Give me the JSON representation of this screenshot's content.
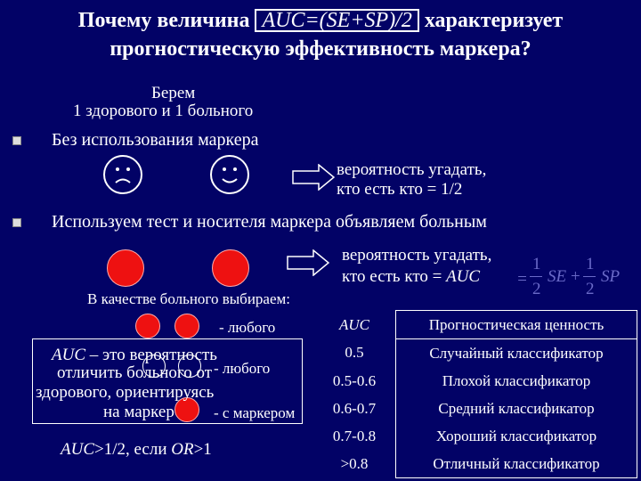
{
  "title": {
    "prefix": "Почему величина",
    "formula": "AUC=(SE+SP)/2",
    "suffix": "характеризует",
    "line2": "прогностическую эффективность маркера?"
  },
  "intro": {
    "line1": "Берем",
    "line2": "1 здорового и 1 больного"
  },
  "bullet1": "Без использования маркера",
  "prob1": {
    "line1": "вероятность угадать,",
    "line2": "кто есть кто = 1/2"
  },
  "bullet2": "Используем тест и носителя маркера объявляем больным",
  "prob2": {
    "line1": "вероятность угадать,",
    "line2_prefix": "кто есть кто = ",
    "line2_auc": "AUC",
    "formula": {
      "eq": "=",
      "one": "1",
      "two": "2",
      "se": "SE",
      "plus": "+",
      "sp": "SP"
    }
  },
  "choose": "В качестве больного выбираем:",
  "any": "- любого",
  "auc_explain": {
    "auc": "AUC",
    "line1_rest": " – это вероятность",
    "line2": "отличить больного от",
    "line3": "здорового, ориентируясь",
    "line4": "на маркер"
  },
  "any_overlay": "- любого",
  "with_marker": "- с маркером",
  "condition": {
    "auc": "AUC",
    "mid": ">1/2, если ",
    "or": "OR",
    "tail": ">1"
  },
  "table": {
    "headers": [
      "AUC",
      "Прогностическая ценность"
    ],
    "rows": [
      [
        "0.5",
        "Случайный классификатор"
      ],
      [
        "0.5-0.6",
        "Плохой классификатор"
      ],
      [
        "0.6-0.7",
        "Средний классификатор"
      ],
      [
        "0.7-0.8",
        "Хороший классификатор"
      ],
      [
        ">0.8",
        "Отличный классификатор"
      ]
    ]
  },
  "colors": {
    "background": "#020266",
    "text": "#ffffff",
    "marker_red": "#ee1111",
    "formula_gray": "#6a6ac8"
  },
  "icons": [
    "sad-face-icon",
    "happy-face-icon",
    "right-arrow-icon",
    "red-ball-icon",
    "bullet-square-icon"
  ]
}
